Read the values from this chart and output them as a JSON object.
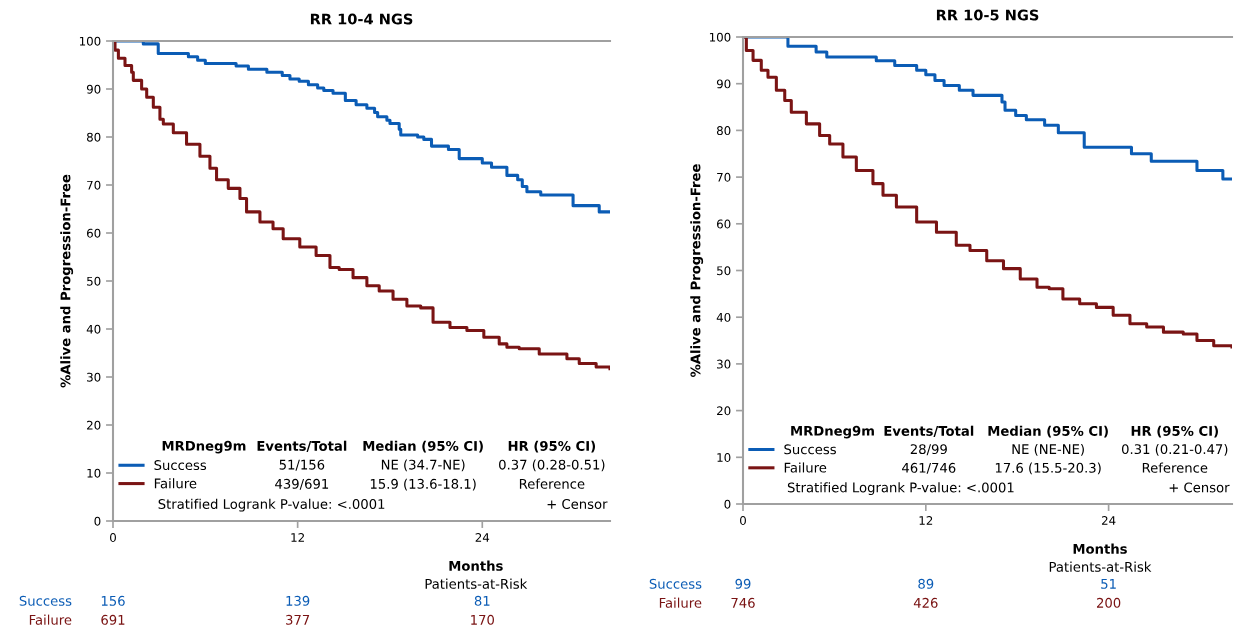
{
  "chart_data": [
    {
      "type": "step",
      "title": "RR 10-4 NGS",
      "xlabel": "Months",
      "ylabel": "%Alive and Progression-Free",
      "xlim": [
        0,
        32.3
      ],
      "xticks": [
        0,
        12,
        24
      ],
      "ylim": [
        0,
        100
      ],
      "yticks": [
        0,
        10,
        20,
        30,
        40,
        50,
        60,
        70,
        80,
        90,
        100
      ],
      "grid": false,
      "legend": "bottom",
      "line_style": "solid",
      "series": [
        {
          "name": "Success",
          "color": "#0b5cb5",
          "x": [
            0,
            1.97,
            2.94,
            4.9,
            5.5,
            6.0,
            8.0,
            8.8,
            10.0,
            11.0,
            11.5,
            12.1,
            12.7,
            13.3,
            13.7,
            14.3,
            15.1,
            15.8,
            16.5,
            17.0,
            17.2,
            17.8,
            18.0,
            18.6,
            18.7,
            19.8,
            20.2,
            20.7,
            21.8,
            22.5,
            24.0,
            24.6,
            25.6,
            26.3,
            26.6,
            26.9,
            27.8,
            29.9,
            31.6,
            32.3
          ],
          "values": [
            100,
            99.4,
            97.4,
            96.7,
            96.0,
            95.3,
            94.8,
            94.1,
            93.5,
            92.8,
            92.1,
            91.6,
            90.9,
            90.2,
            89.7,
            89.1,
            87.6,
            86.7,
            86.0,
            85.1,
            84.2,
            83.5,
            82.8,
            81.6,
            80.4,
            80.0,
            79.5,
            78.1,
            77.4,
            75.5,
            74.6,
            73.7,
            72.0,
            71.1,
            69.7,
            68.6,
            67.9,
            65.7,
            64.4,
            64.4
          ]
        },
        {
          "name": "Failure",
          "color": "#7a1414",
          "x": [
            0,
            0.13,
            0.35,
            0.78,
            1.21,
            1.32,
            1.86,
            2.19,
            2.62,
            3.05,
            3.27,
            3.92,
            4.78,
            5.65,
            6.3,
            6.73,
            7.49,
            8.25,
            8.68,
            9.55,
            10.4,
            11.06,
            12.14,
            13.2,
            14.1,
            14.7,
            15.6,
            16.5,
            17.3,
            18.2,
            19.1,
            20.0,
            20.8,
            21.9,
            23.0,
            24.1,
            25.1,
            25.6,
            26.4,
            27.7,
            28.8,
            29.5,
            30.3,
            31.4,
            32.3
          ],
          "values": [
            100,
            98.1,
            96.4,
            94.9,
            93.5,
            91.8,
            90.0,
            88.3,
            86.2,
            83.7,
            82.7,
            80.9,
            78.5,
            76.0,
            73.5,
            71.1,
            69.3,
            67.2,
            64.4,
            62.3,
            60.9,
            58.8,
            57.1,
            55.3,
            52.8,
            52.4,
            50.7,
            49.0,
            47.9,
            46.2,
            44.8,
            44.4,
            41.4,
            40.3,
            39.7,
            38.3,
            36.9,
            36.2,
            35.9,
            34.8,
            34.8,
            33.8,
            32.8,
            32.1,
            31.7
          ]
        }
      ],
      "annotations": [
        "MRDneg9m",
        "Events/Total",
        "Median (95% CI)",
        "HR (95% CI)",
        "51/156",
        "NE (34.7-NE)",
        "0.37 (0.28-0.51)",
        "439/691",
        "15.9 (13.6-18.1)",
        "Reference",
        "Stratified Logrank P-value: <.0001",
        "+ Censor",
        "Patients-at-Risk",
        "Success",
        "Failure",
        "156",
        "139",
        "81",
        "691",
        "377",
        "170"
      ]
    },
    {
      "type": "step",
      "title": "RR 10-5 NGS",
      "xlabel": "Months",
      "ylabel": "%Alive and Progression-Free",
      "xlim": [
        0,
        32.1
      ],
      "xticks": [
        0,
        12,
        24
      ],
      "ylim": [
        0,
        100
      ],
      "yticks": [
        0,
        10,
        20,
        30,
        40,
        50,
        60,
        70,
        80,
        90,
        100
      ],
      "grid": false,
      "legend": "bottom",
      "line_style": "solid",
      "series": [
        {
          "name": "Success",
          "color": "#0b5cb5",
          "x": [
            0,
            2.95,
            4.8,
            5.5,
            8.75,
            9.96,
            11.4,
            12.0,
            12.6,
            13.2,
            14.2,
            15.1,
            17.0,
            17.2,
            17.9,
            18.6,
            19.8,
            20.7,
            22.4,
            25.5,
            26.8,
            29.8,
            31.5,
            32.1
          ],
          "values": [
            100,
            98.0,
            96.8,
            95.7,
            94.9,
            93.9,
            92.9,
            91.9,
            90.7,
            89.6,
            88.6,
            87.5,
            86.1,
            84.3,
            83.2,
            82.3,
            81.1,
            79.5,
            76.4,
            75.0,
            73.4,
            71.4,
            69.6,
            69.6
          ]
        },
        {
          "name": "Failure",
          "color": "#7a1414",
          "x": [
            0,
            0.22,
            0.66,
            1.2,
            1.64,
            2.19,
            2.74,
            3.17,
            4.16,
            5.03,
            5.69,
            6.56,
            7.44,
            8.53,
            9.19,
            10.07,
            11.4,
            12.7,
            14.0,
            14.9,
            16.0,
            17.1,
            18.2,
            19.3,
            20.1,
            21.0,
            22.1,
            23.2,
            24.3,
            25.4,
            26.5,
            27.6,
            28.9,
            29.8,
            30.9,
            32.1
          ],
          "values": [
            100,
            97.1,
            95.0,
            92.9,
            91.4,
            88.6,
            86.4,
            83.9,
            81.4,
            78.9,
            77.1,
            74.3,
            71.4,
            68.6,
            66.1,
            63.6,
            60.4,
            58.2,
            55.4,
            54.3,
            52.1,
            50.4,
            48.2,
            46.4,
            46.1,
            43.9,
            42.9,
            42.1,
            40.4,
            38.6,
            37.9,
            36.8,
            36.4,
            35.0,
            33.9,
            33.6
          ]
        }
      ],
      "annotations": [
        "MRDneg9m",
        "Events/Total",
        "Median (95% CI)",
        "HR (95% CI)",
        "28/99",
        "NE (NE-NE)",
        "0.31 (0.21-0.47)",
        "461/746",
        "17.6 (15.5-20.3)",
        "Reference",
        "Stratified Logrank P-value: <.0001",
        "+ Censor",
        "Patients-at-Risk",
        "Success",
        "Failure",
        "99",
        "89",
        "51",
        "746",
        "426",
        "200"
      ]
    }
  ]
}
